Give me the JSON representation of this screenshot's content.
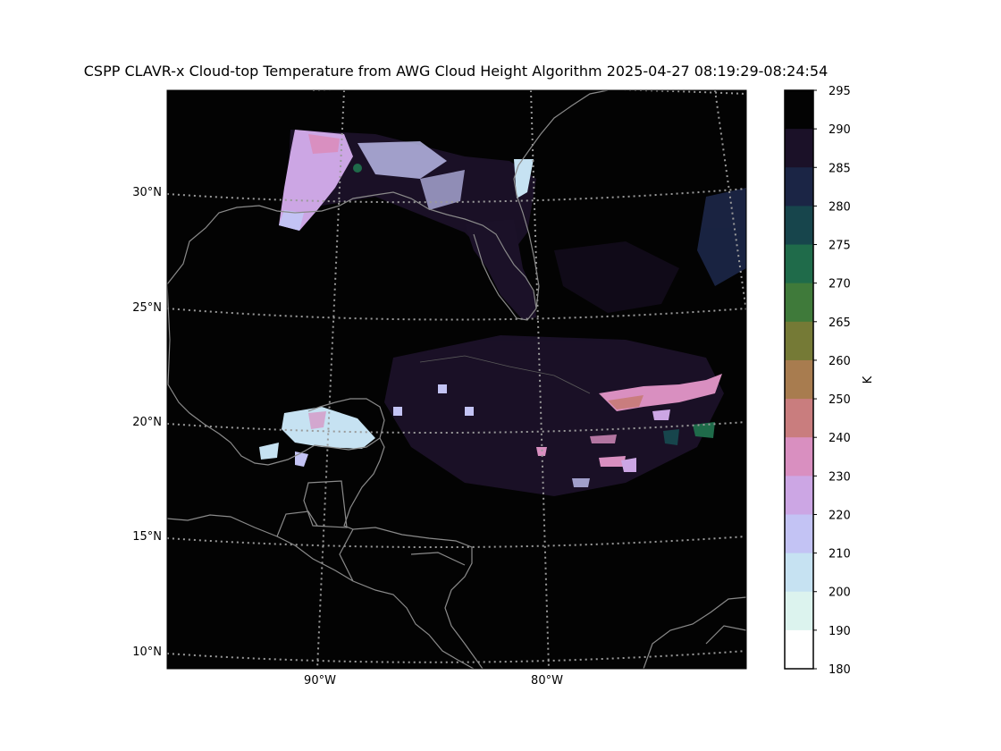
{
  "title": "CSPP CLAVR-x Cloud-top Temperature from AWG Cloud Height Algorithm 2025-04-27 08:19:29-08:24:54",
  "map": {
    "background_color": "#030303",
    "coastline_color": "#8a8a8a",
    "gridline_color": "#9a9a9a",
    "latitude_labels": [
      "30°N",
      "25°N",
      "20°N",
      "15°N",
      "10°N"
    ],
    "longitude_labels": [
      "90°W",
      "80°W"
    ]
  },
  "colorbar": {
    "unit_label": "K",
    "ticks": [
      "295",
      "290",
      "285",
      "280",
      "275",
      "270",
      "265",
      "260",
      "250",
      "240",
      "230",
      "220",
      "210",
      "200",
      "190",
      "180"
    ],
    "colors": [
      "#030303",
      "#1b1128",
      "#1b2545",
      "#17454c",
      "#1f6b4a",
      "#3f7a3a",
      "#757a36",
      "#a87c4f",
      "#c97d7e",
      "#d98fc0",
      "#cca6e4",
      "#c3c3f4",
      "#c6e2f2",
      "#dcf3ee",
      "#ffffff"
    ]
  }
}
